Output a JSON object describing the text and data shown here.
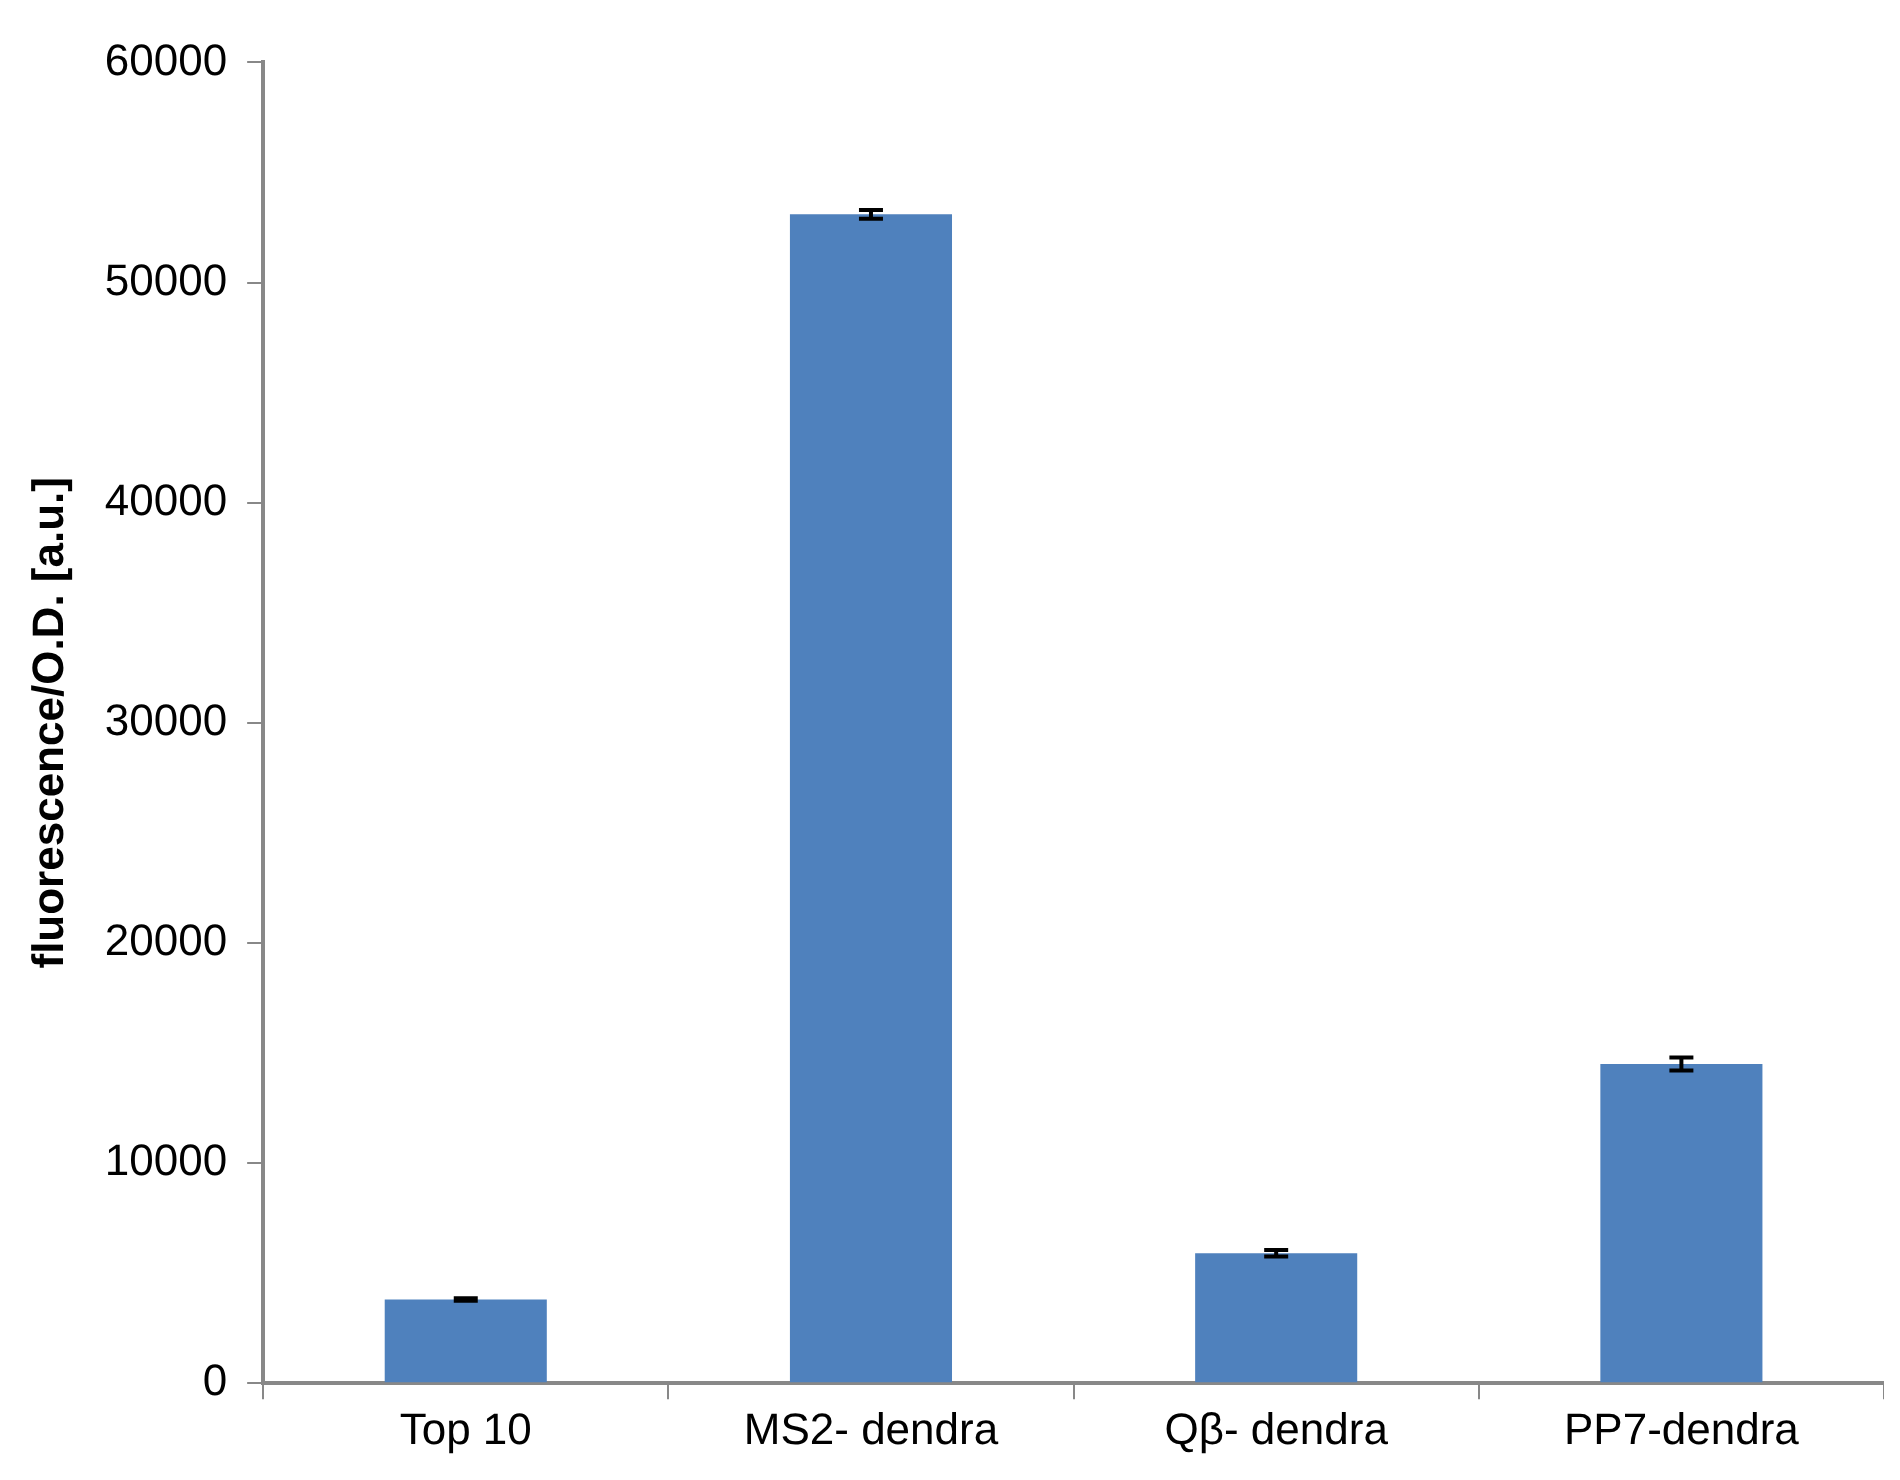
{
  "chart_data": {
    "type": "bar",
    "ylabel": "fluorescence/O.D. [a.u.]",
    "categories": [
      "Top 10",
      "MS2- dendra",
      "Qβ- dendra",
      "PP7-dendra"
    ],
    "series": [
      {
        "color": "#4f81bd",
        "values": [
          3800,
          53100,
          5900,
          14500
        ],
        "errors": [
          60,
          200,
          150,
          300
        ]
      }
    ],
    "ylim": [
      0,
      60000
    ],
    "yticks": [
      0,
      10000,
      20000,
      30000,
      40000,
      50000,
      60000
    ],
    "grid": false,
    "legend": false
  }
}
